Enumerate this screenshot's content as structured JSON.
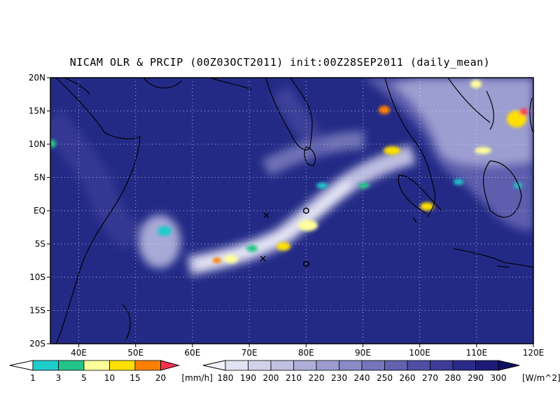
{
  "title": "NICAM OLR & PRCIP (00Z03OCT2011) init:00Z28SEP2011 (daily_mean)",
  "map": {
    "lon_range": [
      35,
      120
    ],
    "lat_range": [
      -20,
      20
    ],
    "lat_labels": [
      "20N",
      "15N",
      "10N",
      "5N",
      "EQ",
      "5S",
      "10S",
      "15S",
      "20S"
    ],
    "lat_values": [
      20,
      15,
      10,
      5,
      0,
      -5,
      -10,
      -15,
      -20
    ],
    "lon_labels": [
      "40E",
      "50E",
      "60E",
      "70E",
      "80E",
      "90E",
      "100E",
      "110E",
      "120E"
    ],
    "lon_values": [
      40,
      50,
      60,
      70,
      80,
      90,
      100,
      110,
      120
    ],
    "background_color": "#232a86",
    "markers": [
      {
        "type": "cross",
        "lon": 73,
        "lat": -0.7
      },
      {
        "type": "cross",
        "lon": 72.4,
        "lat": -7.2
      },
      {
        "type": "hexagon",
        "lon": 80,
        "lat": 0
      },
      {
        "type": "hexagon",
        "lon": 80,
        "lat": -8
      }
    ]
  },
  "precip_colorbar": {
    "labels": [
      "1",
      "3",
      "5",
      "10",
      "15",
      "20"
    ],
    "unit": "[mm/h]",
    "colors": [
      "#1fcccc",
      "#22c48a",
      "#ffff9a",
      "#ffe000",
      "#ff8000",
      "#ff3050"
    ]
  },
  "olr_colorbar": {
    "labels": [
      "180",
      "190",
      "200",
      "210",
      "220",
      "230",
      "240",
      "250",
      "260",
      "270",
      "280",
      "290",
      "300"
    ],
    "unit": "[W/m^2]",
    "colors": [
      "#f2f2fa",
      "#e2e2f2",
      "#d2d2ea",
      "#c0c0e0",
      "#aeaed8",
      "#9c9cd0",
      "#8a8ac6",
      "#7676bc",
      "#6262b0",
      "#4e4ea4",
      "#3c3c98",
      "#2a2a8a",
      "#1c1c78",
      "#101060"
    ]
  }
}
